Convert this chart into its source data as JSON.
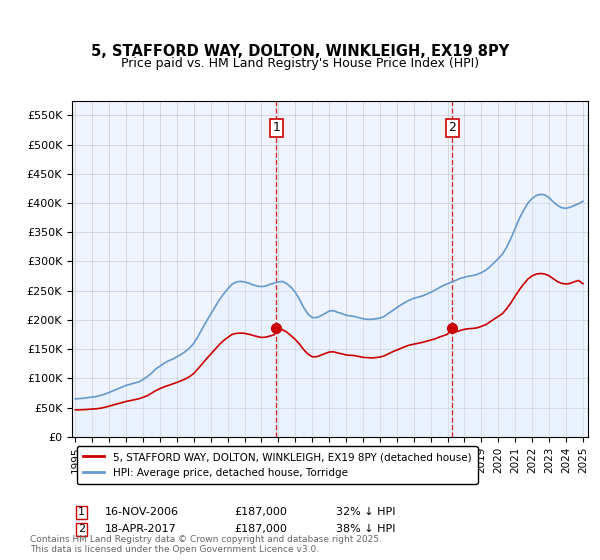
{
  "title": "5, STAFFORD WAY, DOLTON, WINKLEIGH, EX19 8PY",
  "subtitle": "Price paid vs. HM Land Registry's House Price Index (HPI)",
  "legend_line1": "5, STAFFORD WAY, DOLTON, WINKLEIGH, EX19 8PY (detached house)",
  "legend_line2": "HPI: Average price, detached house, Torridge",
  "annotation1_label": "1",
  "annotation1_date": "16-NOV-2006",
  "annotation1_price": "£187,000",
  "annotation1_hpi": "32% ↓ HPI",
  "annotation2_label": "2",
  "annotation2_date": "18-APR-2017",
  "annotation2_price": "£187,000",
  "annotation2_hpi": "38% ↓ HPI",
  "footnote": "Contains HM Land Registry data © Crown copyright and database right 2025.\nThis data is licensed under the Open Government Licence v3.0.",
  "red_color": "#cc0000",
  "blue_color": "#6699cc",
  "blue_fill": "#ddeeff",
  "vline_color": "#cc0000",
  "ylim": [
    0,
    575000
  ],
  "yticks": [
    0,
    50000,
    100000,
    150000,
    200000,
    250000,
    300000,
    350000,
    400000,
    450000,
    500000,
    550000
  ],
  "ytick_labels": [
    "£0",
    "£50K",
    "£100K",
    "£150K",
    "£200K",
    "£250K",
    "£300K",
    "£350K",
    "£400K",
    "£450K",
    "£500K",
    "£550K"
  ],
  "hpi_years": [
    1995.0,
    1995.25,
    1995.5,
    1995.75,
    1996.0,
    1996.25,
    1996.5,
    1996.75,
    1997.0,
    1997.25,
    1997.5,
    1997.75,
    1998.0,
    1998.25,
    1998.5,
    1998.75,
    1999.0,
    1999.25,
    1999.5,
    1999.75,
    2000.0,
    2000.25,
    2000.5,
    2000.75,
    2001.0,
    2001.25,
    2001.5,
    2001.75,
    2002.0,
    2002.25,
    2002.5,
    2002.75,
    2003.0,
    2003.25,
    2003.5,
    2003.75,
    2004.0,
    2004.25,
    2004.5,
    2004.75,
    2005.0,
    2005.25,
    2005.5,
    2005.75,
    2006.0,
    2006.25,
    2006.5,
    2006.75,
    2007.0,
    2007.25,
    2007.5,
    2007.75,
    2008.0,
    2008.25,
    2008.5,
    2008.75,
    2009.0,
    2009.25,
    2009.5,
    2009.75,
    2010.0,
    2010.25,
    2010.5,
    2010.75,
    2011.0,
    2011.25,
    2011.5,
    2011.75,
    2012.0,
    2012.25,
    2012.5,
    2012.75,
    2013.0,
    2013.25,
    2013.5,
    2013.75,
    2014.0,
    2014.25,
    2014.5,
    2014.75,
    2015.0,
    2015.25,
    2015.5,
    2015.75,
    2016.0,
    2016.25,
    2016.5,
    2016.75,
    2017.0,
    2017.25,
    2017.5,
    2017.75,
    2018.0,
    2018.25,
    2018.5,
    2018.75,
    2019.0,
    2019.25,
    2019.5,
    2019.75,
    2020.0,
    2020.25,
    2020.5,
    2020.75,
    2021.0,
    2021.25,
    2021.5,
    2021.75,
    2022.0,
    2022.25,
    2022.5,
    2022.75,
    2023.0,
    2023.25,
    2023.5,
    2023.75,
    2024.0,
    2024.25,
    2024.5,
    2024.75,
    2025.0
  ],
  "hpi_values": [
    65000,
    65500,
    66000,
    67000,
    68000,
    69000,
    71000,
    73000,
    76000,
    79000,
    82000,
    85000,
    88000,
    90000,
    92000,
    94000,
    98000,
    103000,
    109000,
    116000,
    121000,
    126000,
    130000,
    133000,
    137000,
    141000,
    146000,
    152000,
    160000,
    172000,
    185000,
    198000,
    210000,
    222000,
    234000,
    244000,
    253000,
    261000,
    265000,
    266000,
    265000,
    263000,
    260000,
    258000,
    257000,
    258000,
    261000,
    263000,
    265000,
    266000,
    262000,
    256000,
    247000,
    235000,
    221000,
    210000,
    204000,
    204000,
    207000,
    211000,
    215000,
    216000,
    213000,
    211000,
    208000,
    207000,
    206000,
    204000,
    202000,
    201000,
    201000,
    202000,
    203000,
    206000,
    211000,
    216000,
    221000,
    226000,
    230000,
    234000,
    237000,
    239000,
    241000,
    244000,
    247000,
    251000,
    255000,
    259000,
    262000,
    265000,
    268000,
    271000,
    273000,
    275000,
    276000,
    278000,
    281000,
    285000,
    291000,
    298000,
    305000,
    313000,
    325000,
    340000,
    357000,
    374000,
    388000,
    400000,
    408000,
    413000,
    415000,
    414000,
    409000,
    402000,
    396000,
    392000,
    391000,
    393000,
    396000,
    399000,
    403000
  ],
  "red_years": [
    1995.0,
    1995.25,
    1995.5,
    1995.75,
    1996.0,
    1996.25,
    1996.5,
    1996.75,
    1997.0,
    1997.25,
    1997.5,
    1997.75,
    1998.0,
    1998.25,
    1998.5,
    1998.75,
    1999.0,
    1999.25,
    1999.5,
    1999.75,
    2000.0,
    2000.25,
    2000.5,
    2000.75,
    2001.0,
    2001.25,
    2001.5,
    2001.75,
    2002.0,
    2002.25,
    2002.5,
    2002.75,
    2003.0,
    2003.25,
    2003.5,
    2003.75,
    2004.0,
    2004.25,
    2004.5,
    2004.75,
    2005.0,
    2005.25,
    2005.5,
    2005.75,
    2006.0,
    2006.25,
    2006.5,
    2006.75,
    2007.0,
    2007.25,
    2007.5,
    2007.75,
    2008.0,
    2008.25,
    2008.5,
    2008.75,
    2009.0,
    2009.25,
    2009.5,
    2009.75,
    2010.0,
    2010.25,
    2010.5,
    2010.75,
    2011.0,
    2011.25,
    2011.5,
    2011.75,
    2012.0,
    2012.25,
    2012.5,
    2012.75,
    2013.0,
    2013.25,
    2013.5,
    2013.75,
    2014.0,
    2014.25,
    2014.5,
    2014.75,
    2015.0,
    2015.25,
    2015.5,
    2015.75,
    2016.0,
    2016.25,
    2016.5,
    2016.75,
    2017.0,
    2017.25,
    2017.5,
    2017.75,
    2018.0,
    2018.25,
    2018.5,
    2018.75,
    2019.0,
    2019.25,
    2019.5,
    2019.75,
    2020.0,
    2020.25,
    2020.5,
    2020.75,
    2021.0,
    2021.25,
    2021.5,
    2021.75,
    2022.0,
    2022.25,
    2022.5,
    2022.75,
    2023.0,
    2023.25,
    2023.5,
    2023.75,
    2024.0,
    2024.25,
    2024.5,
    2024.75,
    2025.0
  ],
  "red_values": [
    46000,
    46200,
    46500,
    47000,
    47500,
    48000,
    49000,
    50500,
    52500,
    54500,
    56500,
    58500,
    60500,
    62000,
    63500,
    65000,
    67500,
    70500,
    74500,
    79000,
    82500,
    85500,
    88000,
    90500,
    93000,
    96000,
    99000,
    103000,
    108500,
    116500,
    125000,
    133500,
    141500,
    149500,
    157500,
    164500,
    170000,
    175000,
    177000,
    177500,
    177000,
    175500,
    173500,
    171500,
    170000,
    170500,
    172500,
    174500,
    187000,
    183000,
    179000,
    173000,
    166500,
    158500,
    149000,
    141500,
    137000,
    137000,
    139500,
    142500,
    145000,
    145500,
    143500,
    142000,
    140000,
    139500,
    139000,
    137500,
    136000,
    135500,
    135000,
    135500,
    136500,
    138500,
    142000,
    145500,
    148500,
    151500,
    154500,
    157000,
    158500,
    160000,
    161500,
    163500,
    165500,
    167500,
    170500,
    173000,
    175500,
    187000,
    180000,
    182000,
    184000,
    185000,
    185500,
    186500,
    189000,
    192000,
    196500,
    201500,
    206000,
    211000,
    219500,
    229500,
    241000,
    252000,
    261500,
    270000,
    275500,
    278500,
    279500,
    278500,
    275500,
    270500,
    265500,
    262500,
    261500,
    262500,
    265500,
    267500,
    262000
  ],
  "sale1_x": 2006.87,
  "sale1_y": 187000,
  "sale2_x": 2017.29,
  "sale2_y": 187000,
  "xtick_years": [
    1995,
    1996,
    1997,
    1998,
    1999,
    2000,
    2001,
    2002,
    2003,
    2004,
    2005,
    2006,
    2007,
    2008,
    2009,
    2010,
    2011,
    2012,
    2013,
    2014,
    2015,
    2016,
    2017,
    2018,
    2019,
    2020,
    2021,
    2022,
    2023,
    2024,
    2025
  ],
  "background_color": "#f0f4ff"
}
